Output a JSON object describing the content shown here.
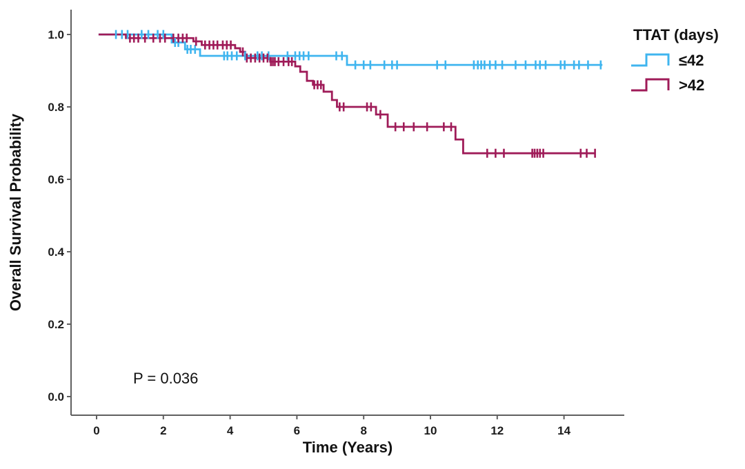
{
  "chart_data": {
    "type": "line",
    "subtype": "kaplan-meier-step",
    "title": "",
    "xlabel": "Time (Years)",
    "ylabel": "Overall Survival Probability",
    "annotation": "P = 0.036",
    "xlim": [
      -0.8,
      15.8
    ],
    "ylim": [
      0.0,
      1.0
    ],
    "xticks": [
      "0",
      "2",
      "4",
      "6",
      "8",
      "10",
      "12",
      "14"
    ],
    "yticks": [
      "0.0",
      "0.2",
      "0.4",
      "0.6",
      "0.8",
      "1.0"
    ],
    "grid": false,
    "axis_color": "#5f5f5f",
    "legend": {
      "title": "TTAT (days)",
      "position": "top-right",
      "entries": [
        {
          "label": "≤42",
          "color": "#3fb5ef"
        },
        {
          "label": ">42",
          "color": "#9f1b58"
        }
      ]
    },
    "series": [
      {
        "name": "≤42",
        "color": "#3fb5ef",
        "start_time": 0.06,
        "end_time": 15.15,
        "steps": [
          [
            0.06,
            1.0
          ],
          [
            2.25,
            0.978
          ],
          [
            2.65,
            0.959
          ],
          [
            3.1,
            0.941
          ],
          [
            7.5,
            0.916
          ]
        ],
        "censors": [
          [
            0.58,
            1.0
          ],
          [
            0.76,
            1.0
          ],
          [
            0.93,
            1.0
          ],
          [
            1.35,
            1.0
          ],
          [
            1.55,
            1.0
          ],
          [
            1.83,
            1.0
          ],
          [
            2.0,
            1.0
          ],
          [
            2.35,
            0.978
          ],
          [
            2.45,
            0.978
          ],
          [
            2.72,
            0.959
          ],
          [
            2.82,
            0.959
          ],
          [
            2.95,
            0.959
          ],
          [
            3.82,
            0.941
          ],
          [
            3.92,
            0.941
          ],
          [
            4.05,
            0.941
          ],
          [
            4.2,
            0.941
          ],
          [
            4.45,
            0.941
          ],
          [
            4.82,
            0.941
          ],
          [
            4.95,
            0.941
          ],
          [
            5.15,
            0.941
          ],
          [
            5.72,
            0.941
          ],
          [
            5.95,
            0.941
          ],
          [
            6.08,
            0.941
          ],
          [
            6.2,
            0.941
          ],
          [
            6.35,
            0.941
          ],
          [
            7.18,
            0.941
          ],
          [
            7.35,
            0.941
          ],
          [
            7.75,
            0.916
          ],
          [
            8.0,
            0.916
          ],
          [
            8.2,
            0.916
          ],
          [
            8.62,
            0.916
          ],
          [
            8.85,
            0.916
          ],
          [
            9.0,
            0.916
          ],
          [
            10.2,
            0.916
          ],
          [
            10.45,
            0.916
          ],
          [
            11.3,
            0.916
          ],
          [
            11.42,
            0.916
          ],
          [
            11.52,
            0.916
          ],
          [
            11.62,
            0.916
          ],
          [
            11.78,
            0.916
          ],
          [
            11.95,
            0.916
          ],
          [
            12.15,
            0.916
          ],
          [
            12.55,
            0.916
          ],
          [
            12.85,
            0.916
          ],
          [
            13.15,
            0.916
          ],
          [
            13.28,
            0.916
          ],
          [
            13.45,
            0.916
          ],
          [
            13.9,
            0.916
          ],
          [
            14.02,
            0.916
          ],
          [
            14.3,
            0.916
          ],
          [
            14.45,
            0.916
          ],
          [
            14.72,
            0.916
          ],
          [
            15.1,
            0.916
          ]
        ]
      },
      {
        "name": ">42",
        "color": "#9f1b58",
        "start_time": 0.06,
        "end_time": 14.95,
        "steps": [
          [
            0.06,
            1.0
          ],
          [
            0.88,
            0.99
          ],
          [
            2.9,
            0.981
          ],
          [
            3.15,
            0.971
          ],
          [
            4.15,
            0.962
          ],
          [
            4.3,
            0.952
          ],
          [
            4.45,
            0.935
          ],
          [
            5.2,
            0.925
          ],
          [
            5.95,
            0.912
          ],
          [
            6.1,
            0.897
          ],
          [
            6.3,
            0.872
          ],
          [
            6.48,
            0.861
          ],
          [
            6.8,
            0.842
          ],
          [
            7.05,
            0.819
          ],
          [
            7.2,
            0.8
          ],
          [
            8.37,
            0.779
          ],
          [
            8.72,
            0.745
          ],
          [
            10.75,
            0.71
          ],
          [
            10.98,
            0.672
          ]
        ],
        "censors": [
          [
            1.0,
            0.99
          ],
          [
            1.12,
            0.99
          ],
          [
            1.25,
            0.99
          ],
          [
            1.45,
            0.99
          ],
          [
            1.7,
            0.99
          ],
          [
            1.9,
            0.99
          ],
          [
            2.05,
            0.99
          ],
          [
            2.3,
            0.99
          ],
          [
            2.45,
            0.99
          ],
          [
            2.58,
            0.99
          ],
          [
            2.7,
            0.99
          ],
          [
            2.98,
            0.981
          ],
          [
            3.25,
            0.971
          ],
          [
            3.38,
            0.971
          ],
          [
            3.5,
            0.971
          ],
          [
            3.62,
            0.971
          ],
          [
            3.78,
            0.971
          ],
          [
            3.9,
            0.971
          ],
          [
            4.02,
            0.971
          ],
          [
            4.38,
            0.952
          ],
          [
            4.5,
            0.935
          ],
          [
            4.62,
            0.935
          ],
          [
            4.75,
            0.935
          ],
          [
            4.88,
            0.935
          ],
          [
            5.0,
            0.935
          ],
          [
            5.12,
            0.935
          ],
          [
            5.22,
            0.925
          ],
          [
            5.28,
            0.925
          ],
          [
            5.34,
            0.925
          ],
          [
            5.45,
            0.925
          ],
          [
            5.6,
            0.925
          ],
          [
            5.75,
            0.925
          ],
          [
            5.85,
            0.925
          ],
          [
            6.52,
            0.861
          ],
          [
            6.62,
            0.861
          ],
          [
            6.72,
            0.861
          ],
          [
            7.28,
            0.8
          ],
          [
            7.4,
            0.8
          ],
          [
            8.1,
            0.8
          ],
          [
            8.22,
            0.8
          ],
          [
            8.5,
            0.779
          ],
          [
            8.95,
            0.745
          ],
          [
            9.2,
            0.745
          ],
          [
            9.5,
            0.745
          ],
          [
            9.9,
            0.745
          ],
          [
            10.4,
            0.745
          ],
          [
            10.62,
            0.745
          ],
          [
            11.7,
            0.672
          ],
          [
            11.95,
            0.672
          ],
          [
            12.2,
            0.672
          ],
          [
            13.05,
            0.672
          ],
          [
            13.12,
            0.672
          ],
          [
            13.2,
            0.672
          ],
          [
            13.28,
            0.672
          ],
          [
            13.38,
            0.672
          ],
          [
            14.5,
            0.672
          ],
          [
            14.68,
            0.672
          ],
          [
            14.93,
            0.672
          ]
        ]
      }
    ]
  }
}
